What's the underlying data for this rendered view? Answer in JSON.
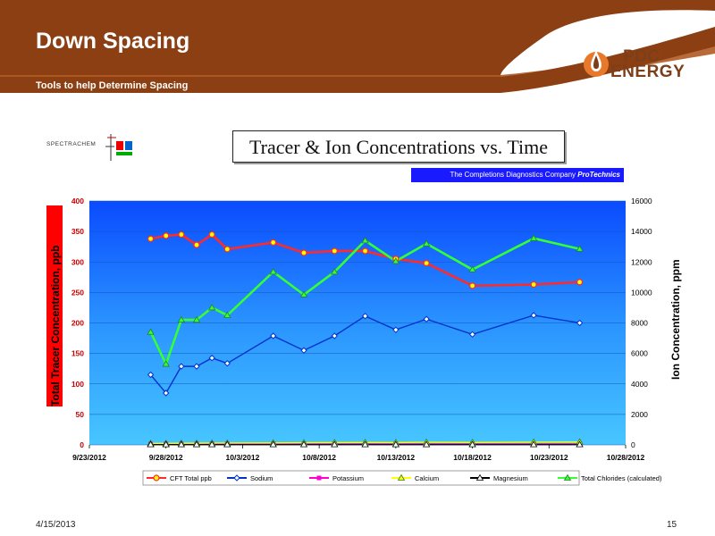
{
  "slide": {
    "title": "Down Spacing",
    "subtitle": "Tools to help Determine Spacing",
    "logo_line1": "PDC",
    "logo_line2": "ENERGY",
    "spectrachem_logo": "SPECTRACHEM",
    "date": "4/15/2013",
    "page": "15",
    "cdc_text": "The Completions  Diagnostics Company",
    "cdc_brand": "ProTechnics",
    "colors": {
      "header_brown": "#8b3f12",
      "chart_bg": "#1a8cff"
    }
  },
  "chart_data": {
    "type": "line",
    "title": "Tracer & Ion Concentrations vs. Time",
    "ylabel": "Total Tracer Concentration, ppb",
    "y2label": "Ion Concentration, ppm",
    "xlabel": "",
    "ylim": [
      0,
      400
    ],
    "y2lim": [
      0,
      16000
    ],
    "yticks": [
      "0",
      "50",
      "100",
      "150",
      "200",
      "250",
      "300",
      "350",
      "400"
    ],
    "y2ticks": [
      "0",
      "2000",
      "4000",
      "6000",
      "8000",
      "10000",
      "12000",
      "14000",
      "16000"
    ],
    "xticks": [
      "9/23/2012",
      "9/28/2012",
      "10/3/2012",
      "10/8/2012",
      "10/13/2012",
      "10/18/2012",
      "10/23/2012",
      "10/28/2012"
    ],
    "xlim_days": [
      0,
      35
    ],
    "legend_position": "bottom",
    "series": [
      {
        "name": "CFT Total ppb",
        "axis": "left",
        "color": "#ff2a2a",
        "marker": "circle-yellow",
        "x": [
          "9/27/2012",
          "9/28/2012",
          "9/29/2012",
          "9/30/2012",
          "10/1/2012",
          "10/2/2012",
          "10/5/2012",
          "10/7/2012",
          "10/9/2012",
          "10/11/2012",
          "10/13/2012",
          "10/15/2012",
          "10/18/2012",
          "10/22/2012",
          "10/25/2012"
        ],
        "values": [
          338,
          343,
          345,
          328,
          345,
          321,
          332,
          315,
          318,
          318,
          305,
          298,
          261,
          263,
          267
        ]
      },
      {
        "name": "Sodium",
        "axis": "right",
        "color": "#0033cc",
        "marker": "diamond",
        "x": [
          "9/27/2012",
          "9/28/2012",
          "9/29/2012",
          "9/30/2012",
          "10/1/2012",
          "10/2/2012",
          "10/5/2012",
          "10/7/2012",
          "10/9/2012",
          "10/11/2012",
          "10/13/2012",
          "10/15/2012",
          "10/18/2012",
          "10/22/2012",
          "10/25/2012"
        ],
        "values": [
          4600,
          3400,
          5150,
          5150,
          5700,
          5350,
          7150,
          6200,
          7150,
          8450,
          7550,
          8250,
          7250,
          8500,
          8000
        ]
      },
      {
        "name": "Potassium",
        "axis": "right",
        "color": "#ff00cc",
        "marker": "square",
        "x": [
          "9/27/2012",
          "9/28/2012",
          "9/29/2012",
          "9/30/2012",
          "10/1/2012",
          "10/2/2012",
          "10/5/2012",
          "10/7/2012",
          "10/9/2012",
          "10/11/2012",
          "10/13/2012",
          "10/15/2012",
          "10/18/2012",
          "10/22/2012",
          "10/25/2012"
        ],
        "values": [
          60,
          60,
          60,
          60,
          60,
          60,
          60,
          60,
          60,
          60,
          60,
          60,
          60,
          60,
          60
        ]
      },
      {
        "name": "Calcium",
        "axis": "right",
        "color": "#ffff00",
        "marker": "triangle",
        "x": [
          "9/27/2012",
          "9/28/2012",
          "9/29/2012",
          "9/30/2012",
          "10/1/2012",
          "10/2/2012",
          "10/5/2012",
          "10/7/2012",
          "10/9/2012",
          "10/11/2012",
          "10/13/2012",
          "10/15/2012",
          "10/18/2012",
          "10/22/2012",
          "10/25/2012"
        ],
        "values": [
          100,
          100,
          110,
          110,
          120,
          120,
          130,
          140,
          150,
          160,
          150,
          170,
          160,
          180,
          190
        ]
      },
      {
        "name": "Magnesium",
        "axis": "right",
        "color": "#000000",
        "marker": "triangle",
        "x": [
          "9/27/2012",
          "9/28/2012",
          "9/29/2012",
          "9/30/2012",
          "10/1/2012",
          "10/2/2012",
          "10/5/2012",
          "10/7/2012",
          "10/9/2012",
          "10/11/2012",
          "10/13/2012",
          "10/15/2012",
          "10/18/2012",
          "10/22/2012",
          "10/25/2012"
        ],
        "values": [
          20,
          20,
          20,
          20,
          20,
          20,
          20,
          20,
          20,
          20,
          20,
          20,
          20,
          20,
          20
        ]
      },
      {
        "name": "Total Chlorides (calculated)",
        "axis": "right",
        "color": "#33ff33",
        "marker": "triangle",
        "x": [
          "9/27/2012",
          "9/28/2012",
          "9/29/2012",
          "9/30/2012",
          "10/1/2012",
          "10/2/2012",
          "10/5/2012",
          "10/7/2012",
          "10/9/2012",
          "10/11/2012",
          "10/13/2012",
          "10/15/2012",
          "10/18/2012",
          "10/22/2012",
          "10/25/2012"
        ],
        "values": [
          7400,
          5300,
          8200,
          8200,
          9000,
          8500,
          11350,
          9850,
          11350,
          13400,
          12050,
          13200,
          11500,
          13550,
          12850
        ]
      }
    ]
  }
}
